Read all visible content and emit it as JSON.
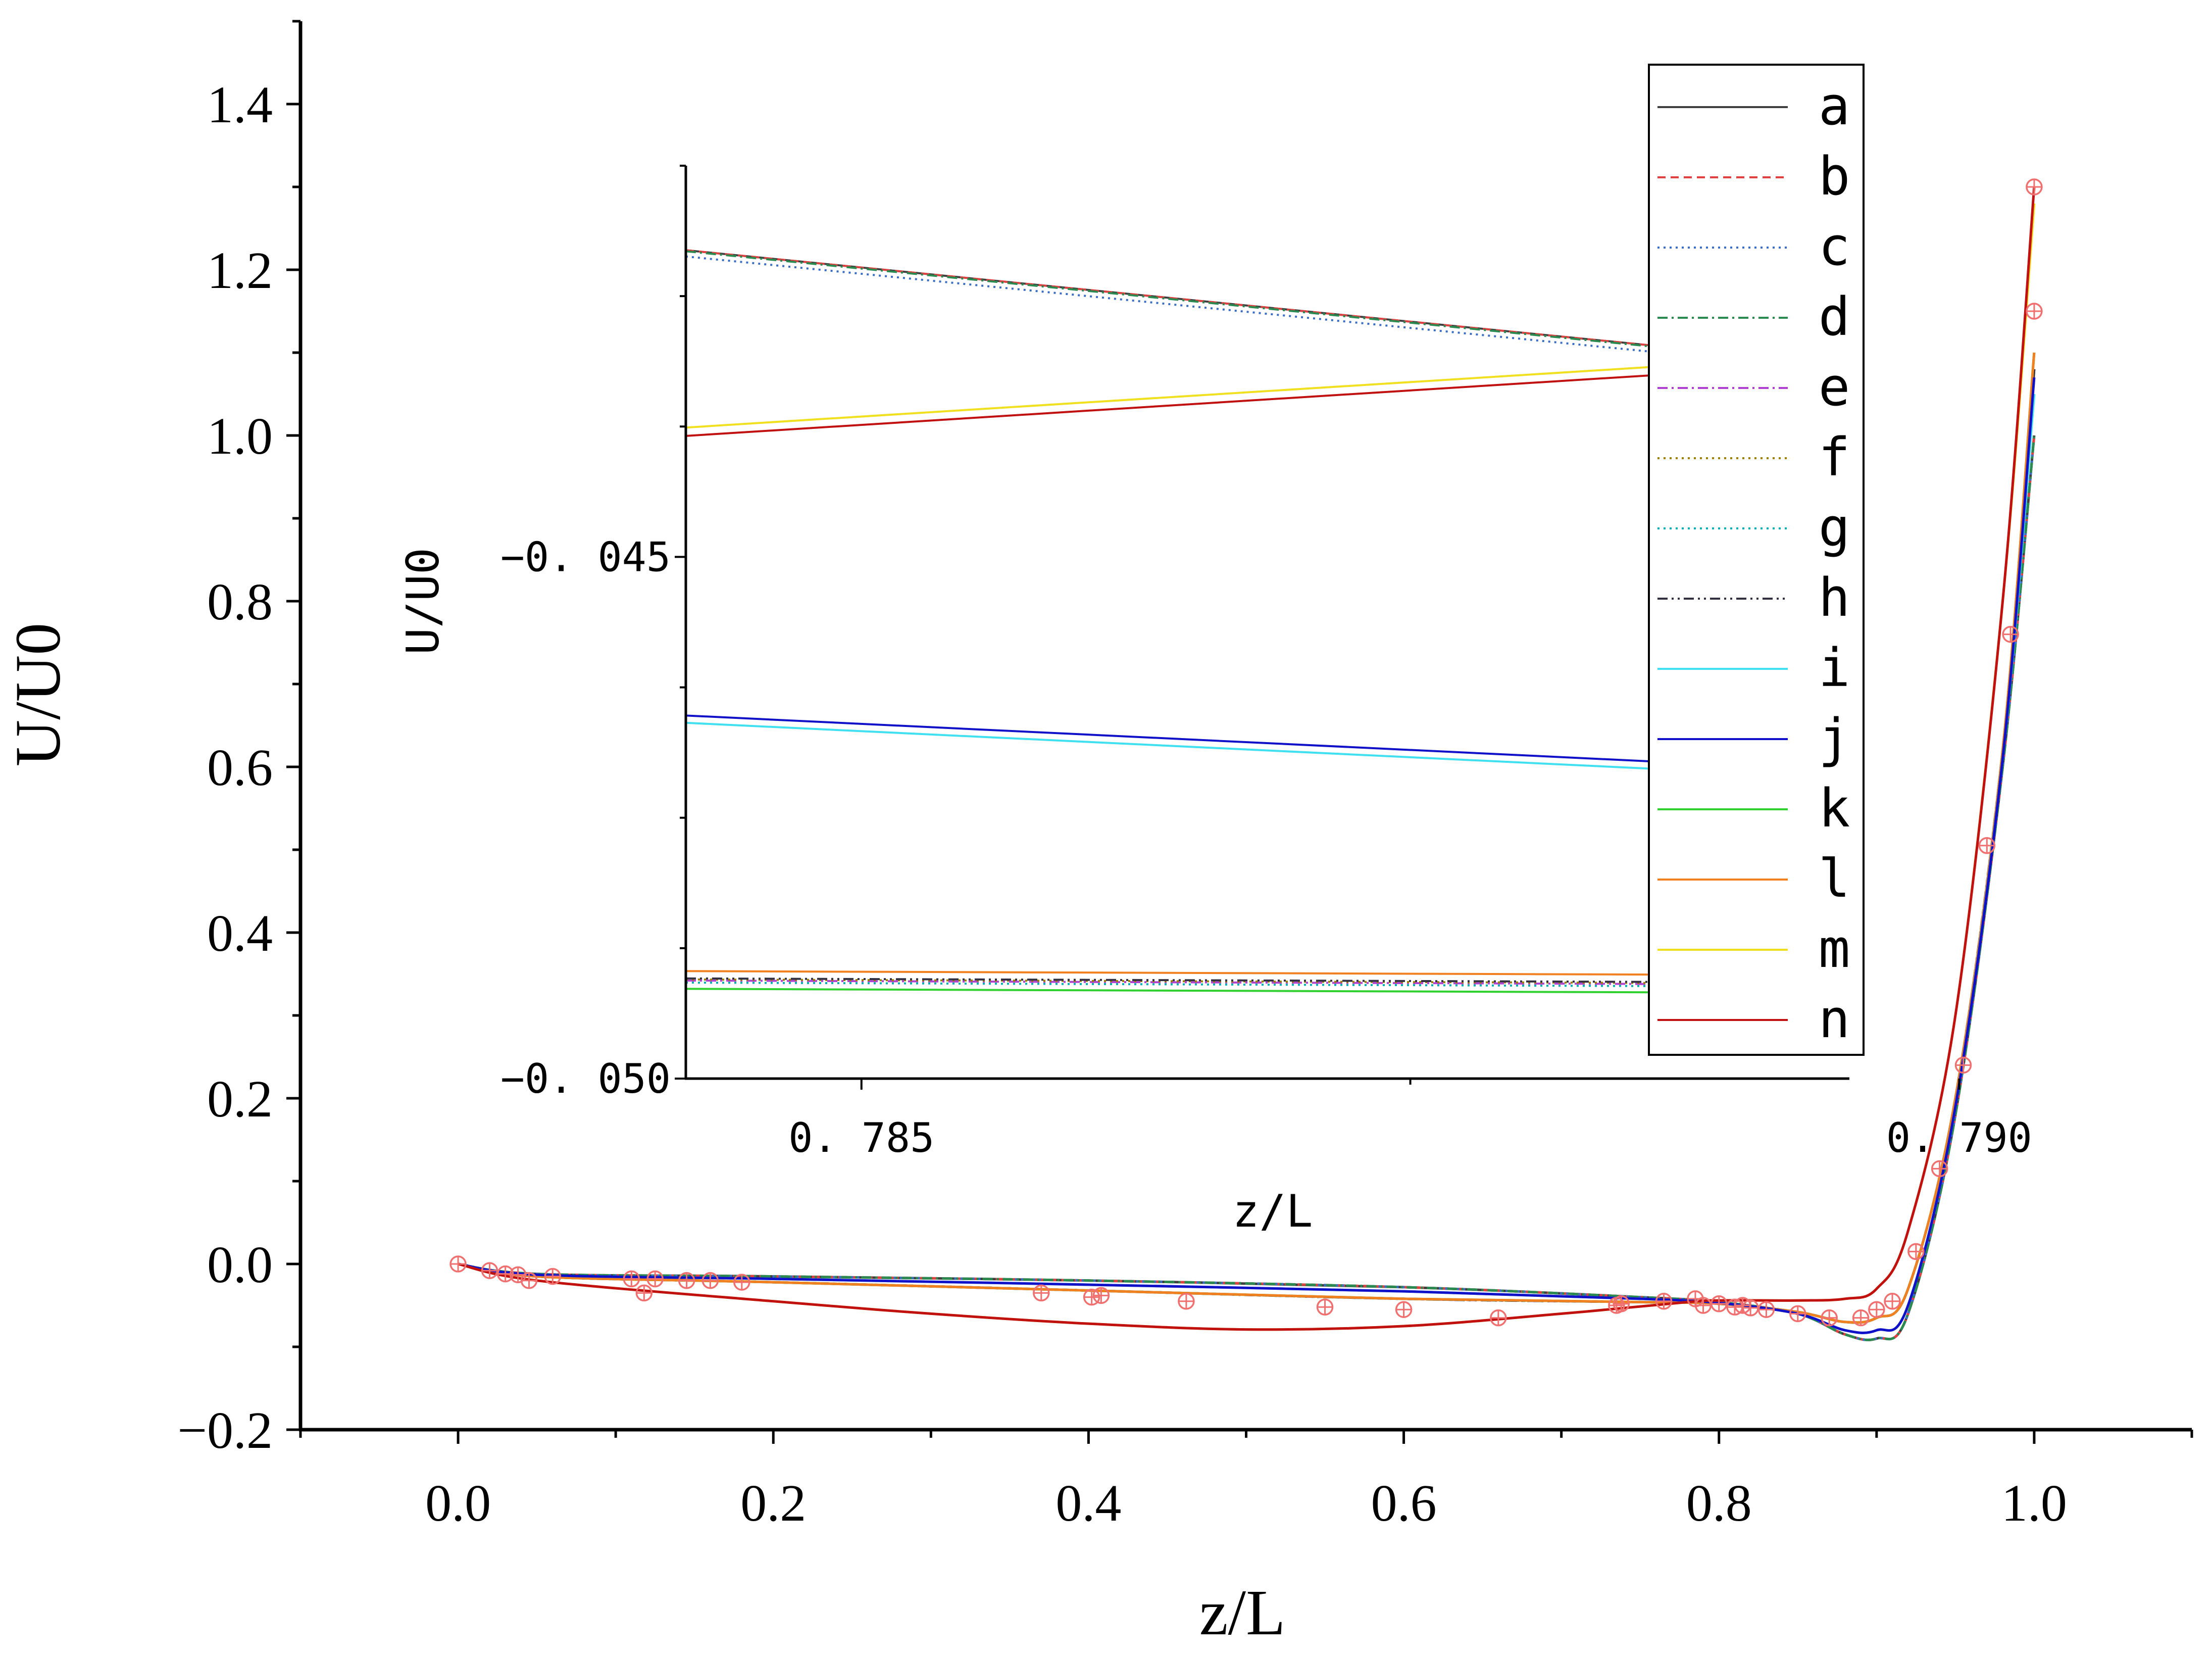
{
  "chart_data": [
    {
      "type": "line",
      "panel": "main",
      "xlabel": "z/L",
      "ylabel": "U/U0",
      "xlim": [
        -0.1,
        1.1
      ],
      "ylim": [
        -0.2,
        1.5
      ],
      "xticks": [
        "0.0",
        "0.2",
        "0.4",
        "0.6",
        "0.8",
        "1.0"
      ],
      "yticks": [
        "−0.2",
        "0.0",
        "0.2",
        "0.4",
        "0.6",
        "0.8",
        "1.0",
        "1.2",
        "1.4"
      ],
      "series": [
        {
          "name": "a",
          "color": "#404040",
          "style": "solid",
          "x": [
            0.0,
            0.05,
            0.2,
            0.4,
            0.6,
            0.75,
            0.8,
            0.85,
            0.88,
            0.9,
            0.92,
            0.95,
            0.98,
            1.0
          ],
          "y": [
            0.0,
            -0.012,
            -0.015,
            -0.02,
            -0.028,
            -0.04,
            -0.046,
            -0.06,
            -0.085,
            -0.09,
            -0.06,
            0.18,
            0.6,
            1.0
          ]
        },
        {
          "name": "b",
          "color": "#e04040",
          "style": "dashed",
          "x": [
            0.0,
            0.05,
            0.2,
            0.4,
            0.6,
            0.75,
            0.8,
            0.85,
            0.88,
            0.9,
            0.92,
            0.95,
            0.98,
            1.0
          ],
          "y": [
            0.0,
            -0.012,
            -0.015,
            -0.02,
            -0.028,
            -0.04,
            -0.046,
            -0.06,
            -0.085,
            -0.09,
            -0.06,
            0.18,
            0.6,
            1.0
          ]
        },
        {
          "name": "c",
          "color": "#3a6ec4",
          "style": "dotted",
          "x": [
            0.0,
            0.05,
            0.2,
            0.4,
            0.6,
            0.75,
            0.8,
            0.85,
            0.88,
            0.9,
            0.92,
            0.95,
            0.98,
            1.0
          ],
          "y": [
            0.0,
            -0.012,
            -0.015,
            -0.02,
            -0.028,
            -0.04,
            -0.046,
            -0.06,
            -0.085,
            -0.09,
            -0.06,
            0.18,
            0.6,
            1.0
          ]
        },
        {
          "name": "d",
          "color": "#2a8a50",
          "style": "dashdot",
          "x": [
            0.0,
            0.05,
            0.2,
            0.4,
            0.6,
            0.75,
            0.8,
            0.85,
            0.88,
            0.9,
            0.92,
            0.95,
            0.98,
            1.0
          ],
          "y": [
            0.0,
            -0.012,
            -0.015,
            -0.02,
            -0.028,
            -0.04,
            -0.046,
            -0.06,
            -0.085,
            -0.09,
            -0.06,
            0.18,
            0.6,
            1.0
          ]
        },
        {
          "name": "e",
          "color": "#b040d0",
          "style": "dashdot",
          "x": [
            0.0,
            0.05,
            0.2,
            0.4,
            0.6,
            0.75,
            0.8,
            0.85,
            0.88,
            0.9,
            0.92,
            0.95,
            0.98,
            1.0
          ],
          "y": [
            0.0,
            -0.015,
            -0.022,
            -0.032,
            -0.042,
            -0.046,
            -0.048,
            -0.058,
            -0.07,
            -0.065,
            -0.03,
            0.2,
            0.62,
            1.08
          ]
        },
        {
          "name": "f",
          "color": "#a08000",
          "style": "dotted",
          "x": [
            0.0,
            0.05,
            0.2,
            0.4,
            0.6,
            0.75,
            0.8,
            0.85,
            0.88,
            0.9,
            0.92,
            0.95,
            0.98,
            1.0
          ],
          "y": [
            0.0,
            -0.015,
            -0.022,
            -0.032,
            -0.042,
            -0.046,
            -0.048,
            -0.058,
            -0.07,
            -0.065,
            -0.03,
            0.2,
            0.62,
            1.08
          ]
        },
        {
          "name": "g",
          "color": "#00b0b0",
          "style": "dotted",
          "x": [
            0.0,
            0.05,
            0.2,
            0.4,
            0.6,
            0.75,
            0.8,
            0.85,
            0.88,
            0.9,
            0.92,
            0.95,
            0.98,
            1.0
          ],
          "y": [
            0.0,
            -0.015,
            -0.022,
            -0.032,
            -0.042,
            -0.046,
            -0.048,
            -0.058,
            -0.07,
            -0.065,
            -0.03,
            0.2,
            0.62,
            1.08
          ]
        },
        {
          "name": "h",
          "color": "#303040",
          "style": "dashdotdot",
          "x": [
            0.0,
            0.05,
            0.2,
            0.4,
            0.6,
            0.75,
            0.8,
            0.85,
            0.88,
            0.9,
            0.92,
            0.95,
            0.98,
            1.0
          ],
          "y": [
            0.0,
            -0.015,
            -0.022,
            -0.032,
            -0.042,
            -0.046,
            -0.048,
            -0.058,
            -0.07,
            -0.065,
            -0.03,
            0.2,
            0.62,
            1.08
          ]
        },
        {
          "name": "i",
          "color": "#40e0f0",
          "style": "solid",
          "x": [
            0.0,
            0.05,
            0.2,
            0.4,
            0.6,
            0.75,
            0.8,
            0.85,
            0.88,
            0.9,
            0.92,
            0.95,
            0.98,
            1.0
          ],
          "y": [
            0.0,
            -0.013,
            -0.018,
            -0.025,
            -0.033,
            -0.042,
            -0.047,
            -0.06,
            -0.08,
            -0.08,
            -0.05,
            0.19,
            0.61,
            1.05
          ]
        },
        {
          "name": "j",
          "color": "#1010c8",
          "style": "solid",
          "x": [
            0.0,
            0.05,
            0.2,
            0.4,
            0.6,
            0.75,
            0.8,
            0.85,
            0.88,
            0.9,
            0.92,
            0.95,
            0.98,
            1.0
          ],
          "y": [
            0.0,
            -0.013,
            -0.018,
            -0.025,
            -0.033,
            -0.042,
            -0.047,
            -0.06,
            -0.08,
            -0.08,
            -0.05,
            0.19,
            0.61,
            1.07
          ]
        },
        {
          "name": "k",
          "color": "#30d030",
          "style": "solid",
          "x": [
            0.0,
            0.05,
            0.2,
            0.4,
            0.6,
            0.75,
            0.8,
            0.85,
            0.88,
            0.9,
            0.92,
            0.95,
            0.98,
            1.0
          ],
          "y": [
            0.0,
            -0.015,
            -0.022,
            -0.032,
            -0.042,
            -0.046,
            -0.048,
            -0.058,
            -0.07,
            -0.065,
            -0.03,
            0.2,
            0.62,
            1.1
          ]
        },
        {
          "name": "l",
          "color": "#f08020",
          "style": "solid",
          "x": [
            0.0,
            0.05,
            0.2,
            0.4,
            0.6,
            0.75,
            0.8,
            0.85,
            0.88,
            0.9,
            0.92,
            0.95,
            0.98,
            1.0
          ],
          "y": [
            0.0,
            -0.015,
            -0.022,
            -0.032,
            -0.042,
            -0.046,
            -0.048,
            -0.058,
            -0.07,
            -0.065,
            -0.03,
            0.2,
            0.62,
            1.1
          ]
        },
        {
          "name": "m",
          "color": "#f0e020",
          "style": "solid",
          "x": [
            0.0,
            0.05,
            0.2,
            0.3,
            0.4,
            0.5,
            0.6,
            0.7,
            0.78,
            0.8,
            0.85,
            0.88,
            0.9,
            0.92,
            0.95,
            0.98,
            1.0
          ],
          "y": [
            0.0,
            -0.02,
            -0.045,
            -0.06,
            -0.072,
            -0.079,
            -0.075,
            -0.06,
            -0.046,
            -0.044,
            -0.044,
            -0.042,
            -0.03,
            0.04,
            0.3,
            0.8,
            1.28
          ]
        },
        {
          "name": "n",
          "color": "#c01010",
          "style": "solid",
          "x": [
            0.0,
            0.05,
            0.2,
            0.3,
            0.4,
            0.5,
            0.6,
            0.7,
            0.78,
            0.8,
            0.85,
            0.88,
            0.9,
            0.92,
            0.95,
            0.98,
            1.0
          ],
          "y": [
            0.0,
            -0.02,
            -0.045,
            -0.06,
            -0.072,
            -0.079,
            -0.075,
            -0.06,
            -0.046,
            -0.044,
            -0.044,
            -0.042,
            -0.03,
            0.04,
            0.3,
            0.8,
            1.3
          ]
        }
      ],
      "markers": {
        "color": "#f07070",
        "symbol": "circle-plus",
        "x": [
          0.0,
          0.02,
          0.03,
          0.038,
          0.045,
          0.06,
          0.11,
          0.118,
          0.125,
          0.145,
          0.16,
          0.18,
          0.37,
          0.402,
          0.408,
          0.462,
          0.55,
          0.6,
          0.66,
          0.735,
          0.738,
          0.765,
          0.785,
          0.79,
          0.8,
          0.81,
          0.815,
          0.82,
          0.83,
          0.85,
          0.87,
          0.89,
          0.9,
          0.91,
          0.925,
          0.94,
          0.955,
          0.97,
          0.985,
          1.0,
          1.0
        ],
        "y": [
          0.0,
          -0.008,
          -0.012,
          -0.013,
          -0.02,
          -0.015,
          -0.018,
          -0.035,
          -0.018,
          -0.02,
          -0.02,
          -0.022,
          -0.035,
          -0.04,
          -0.038,
          -0.045,
          -0.052,
          -0.055,
          -0.065,
          -0.05,
          -0.048,
          -0.045,
          -0.042,
          -0.05,
          -0.048,
          -0.052,
          -0.05,
          -0.053,
          -0.055,
          -0.06,
          -0.065,
          -0.065,
          -0.055,
          -0.045,
          0.015,
          0.115,
          0.24,
          0.505,
          0.76,
          1.15,
          1.3
        ]
      }
    },
    {
      "type": "line",
      "panel": "inset",
      "xlabel": "z/L",
      "ylabel": "U/U0",
      "xlim": [
        0.7842,
        0.7895
      ],
      "ylim": [
        -0.05,
        -0.04125
      ],
      "xticks": [
        "0. 785",
        "0. 790"
      ],
      "yticks": [
        "−0. 050",
        "−0. 045"
      ],
      "series": [
        {
          "name": "a",
          "color": "#404040",
          "style": "solid",
          "x": [
            0.7842,
            0.7895
          ],
          "y": [
            -0.04206,
            -0.04316
          ]
        },
        {
          "name": "b",
          "color": "#e04040",
          "style": "dashed",
          "x": [
            0.7842,
            0.7895
          ],
          "y": [
            -0.04206,
            -0.04316
          ]
        },
        {
          "name": "c",
          "color": "#3a6ec4",
          "style": "dotted",
          "x": [
            0.7842,
            0.7895
          ],
          "y": [
            -0.04212,
            -0.04322
          ]
        },
        {
          "name": "d",
          "color": "#2a8a50",
          "style": "dashdot",
          "x": [
            0.7842,
            0.7895
          ],
          "y": [
            -0.04207,
            -0.04317
          ]
        },
        {
          "name": "e",
          "color": "#b040d0",
          "style": "dashdot",
          "x": [
            0.7842,
            0.7895
          ],
          "y": [
            -0.04906,
            -0.0491
          ]
        },
        {
          "name": "f",
          "color": "#a08000",
          "style": "dotted",
          "x": [
            0.7842,
            0.7895
          ],
          "y": [
            -0.04905,
            -0.04909
          ]
        },
        {
          "name": "g",
          "color": "#00b0b0",
          "style": "dotted",
          "x": [
            0.7842,
            0.7895
          ],
          "y": [
            -0.04908,
            -0.04912
          ]
        },
        {
          "name": "h",
          "color": "#303040",
          "style": "dashdotdot",
          "x": [
            0.7842,
            0.7895
          ],
          "y": [
            -0.04904,
            -0.04908
          ]
        },
        {
          "name": "i",
          "color": "#40e0f0",
          "style": "solid",
          "x": [
            0.7842,
            0.7895
          ],
          "y": [
            -0.04659,
            -0.04712
          ]
        },
        {
          "name": "j",
          "color": "#1010c8",
          "style": "solid",
          "x": [
            0.7842,
            0.7895
          ],
          "y": [
            -0.04652,
            -0.04705
          ]
        },
        {
          "name": "k",
          "color": "#30d030",
          "style": "solid",
          "x": [
            0.7842,
            0.7895
          ],
          "y": [
            -0.04914,
            -0.04918
          ]
        },
        {
          "name": "l",
          "color": "#f08020",
          "style": "solid",
          "x": [
            0.7842,
            0.7895
          ],
          "y": [
            -0.04897,
            -0.04901
          ]
        },
        {
          "name": "m",
          "color": "#f0e020",
          "style": "solid",
          "x": [
            0.7842,
            0.7895
          ],
          "y": [
            -0.04376,
            -0.04306
          ]
        },
        {
          "name": "n",
          "color": "#c01010",
          "style": "solid",
          "x": [
            0.7842,
            0.7895
          ],
          "y": [
            -0.04384,
            -0.04314
          ]
        }
      ]
    }
  ],
  "legend": {
    "placement": "top-right",
    "entries": [
      {
        "label": "a",
        "color": "#404040",
        "style": "solid"
      },
      {
        "label": "b",
        "color": "#e04040",
        "style": "dashed"
      },
      {
        "label": "c",
        "color": "#3a6ec4",
        "style": "dotted"
      },
      {
        "label": "d",
        "color": "#2a8a50",
        "style": "dashdot"
      },
      {
        "label": "e",
        "color": "#b040d0",
        "style": "dashdot"
      },
      {
        "label": "f",
        "color": "#a08000",
        "style": "dotted"
      },
      {
        "label": "g",
        "color": "#00b0b0",
        "style": "dotted"
      },
      {
        "label": "h",
        "color": "#303040",
        "style": "dashdotdot"
      },
      {
        "label": "i",
        "color": "#40e0f0",
        "style": "solid"
      },
      {
        "label": "j",
        "color": "#1010c8",
        "style": "solid"
      },
      {
        "label": "k",
        "color": "#30d030",
        "style": "solid"
      },
      {
        "label": "l",
        "color": "#f08020",
        "style": "solid"
      },
      {
        "label": "m",
        "color": "#f0e020",
        "style": "solid"
      },
      {
        "label": "n",
        "color": "#c01010",
        "style": "solid"
      }
    ]
  }
}
